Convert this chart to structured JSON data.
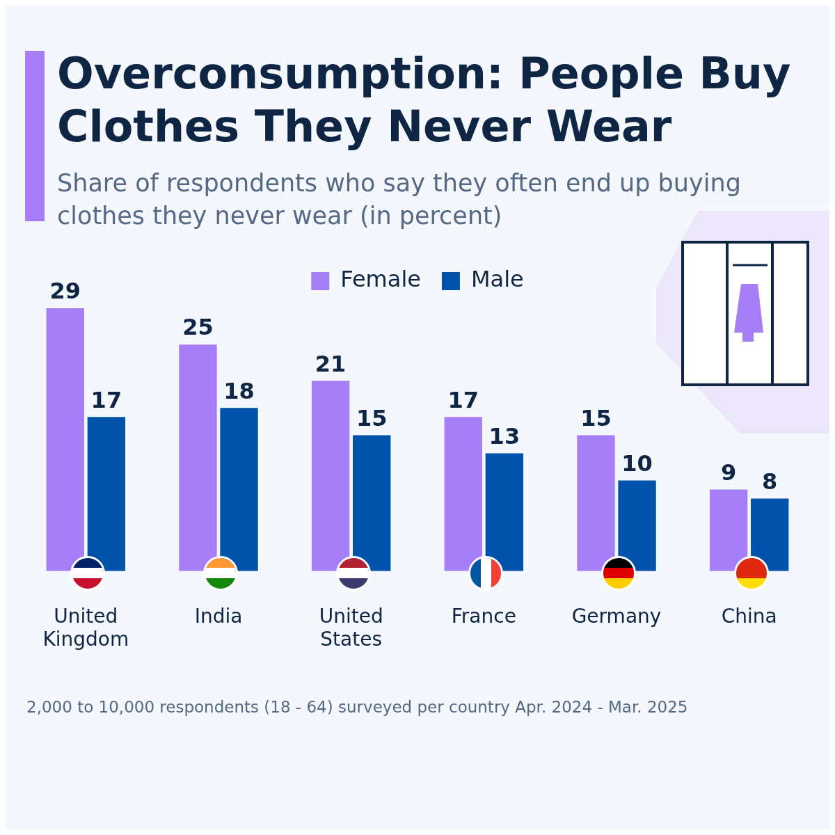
{
  "chart_data": {
    "type": "bar",
    "title": "Overconsumption: People Buy Clothes They Never Wear",
    "subtitle": "Share of respondents who say they often end up buying clothes they never wear (in percent)",
    "categories": [
      "United Kingdom",
      "India",
      "United States",
      "France",
      "Germany",
      "China"
    ],
    "series": [
      {
        "name": "Female",
        "color": "#a67ef8",
        "values": [
          29,
          25,
          21,
          17,
          15,
          9
        ]
      },
      {
        "name": "Male",
        "color": "#0052ab",
        "values": [
          17,
          18,
          15,
          13,
          10,
          8
        ]
      }
    ],
    "data_labels": true,
    "grid": false,
    "legend": "top",
    "annotations": [
      "2,000 to 10,000 respondents (18 - 64) surveyed per country Apr. 2024 - Mar. 2025"
    ]
  }
}
